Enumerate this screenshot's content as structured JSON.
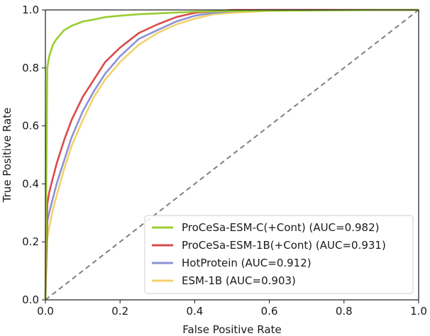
{
  "chart_data": {
    "type": "line",
    "title": "",
    "xlabel": "False Positive Rate",
    "ylabel": "True Positive Rate",
    "xlim": [
      0,
      1
    ],
    "ylim": [
      0,
      1
    ],
    "xticks": [
      0.0,
      0.2,
      0.4,
      0.6,
      0.8,
      1.0
    ],
    "yticks": [
      0.0,
      0.2,
      0.4,
      0.6,
      0.8,
      1.0
    ],
    "xtick_labels": [
      "0.0",
      "0.2",
      "0.4",
      "0.6",
      "0.8",
      "1.0"
    ],
    "ytick_labels": [
      "0.0",
      "0.2",
      "0.4",
      "0.6",
      "0.8",
      "1.0"
    ],
    "grid": false,
    "legend_position": "lower-right",
    "series": [
      {
        "name": "ProCeSa-ESM-C(+Cont) (AUC=0.982)",
        "color": "#9acd32",
        "x": [
          0,
          0.002,
          0.005,
          0.01,
          0.015,
          0.02,
          0.03,
          0.04,
          0.05,
          0.07,
          0.1,
          0.13,
          0.16,
          0.2,
          0.25,
          0.3,
          0.35,
          0.4,
          0.5,
          0.6,
          0.7,
          0.8,
          0.9,
          1.0
        ],
        "y": [
          0,
          0.35,
          0.8,
          0.84,
          0.86,
          0.88,
          0.9,
          0.915,
          0.93,
          0.945,
          0.96,
          0.967,
          0.975,
          0.98,
          0.985,
          0.988,
          0.991,
          0.994,
          0.996,
          0.997,
          0.998,
          0.999,
          1.0,
          1.0
        ]
      },
      {
        "name": "ProCeSa-ESM-1B(+Cont) (AUC=0.931)",
        "color": "#d94b4b",
        "x": [
          0,
          0.005,
          0.01,
          0.02,
          0.03,
          0.05,
          0.07,
          0.1,
          0.13,
          0.16,
          0.2,
          0.25,
          0.3,
          0.35,
          0.4,
          0.45,
          0.5,
          0.6,
          0.7,
          0.8,
          0.9,
          1.0
        ],
        "y": [
          0,
          0.33,
          0.37,
          0.42,
          0.47,
          0.55,
          0.62,
          0.7,
          0.76,
          0.82,
          0.87,
          0.92,
          0.95,
          0.975,
          0.99,
          0.995,
          1.0,
          1.0,
          1.0,
          1.0,
          1.0,
          1.0
        ]
      },
      {
        "name": "HotProtein (AUC=0.912)",
        "color": "#8c92d6",
        "x": [
          0,
          0.005,
          0.01,
          0.02,
          0.03,
          0.05,
          0.07,
          0.1,
          0.13,
          0.16,
          0.2,
          0.25,
          0.3,
          0.35,
          0.4,
          0.45,
          0.5,
          0.6,
          0.7,
          0.8,
          0.9,
          1.0
        ],
        "y": [
          0,
          0.27,
          0.3,
          0.35,
          0.4,
          0.48,
          0.56,
          0.65,
          0.72,
          0.78,
          0.84,
          0.9,
          0.93,
          0.96,
          0.98,
          0.99,
          0.995,
          1.0,
          1.0,
          1.0,
          1.0,
          1.0
        ]
      },
      {
        "name": "ESM-1B (AUC=0.903)",
        "color": "#f2d16b",
        "x": [
          0,
          0.005,
          0.01,
          0.02,
          0.03,
          0.05,
          0.07,
          0.1,
          0.13,
          0.16,
          0.2,
          0.25,
          0.3,
          0.35,
          0.4,
          0.45,
          0.5,
          0.6,
          0.7,
          0.8,
          0.9,
          1.0
        ],
        "y": [
          0,
          0.21,
          0.25,
          0.31,
          0.36,
          0.45,
          0.53,
          0.62,
          0.7,
          0.76,
          0.82,
          0.88,
          0.92,
          0.95,
          0.97,
          0.985,
          0.99,
          0.997,
          1.0,
          1.0,
          1.0,
          1.0
        ]
      }
    ],
    "reference_line": {
      "x": [
        0,
        1
      ],
      "y": [
        0,
        1
      ],
      "color": "#808080",
      "style": "dashed"
    }
  }
}
